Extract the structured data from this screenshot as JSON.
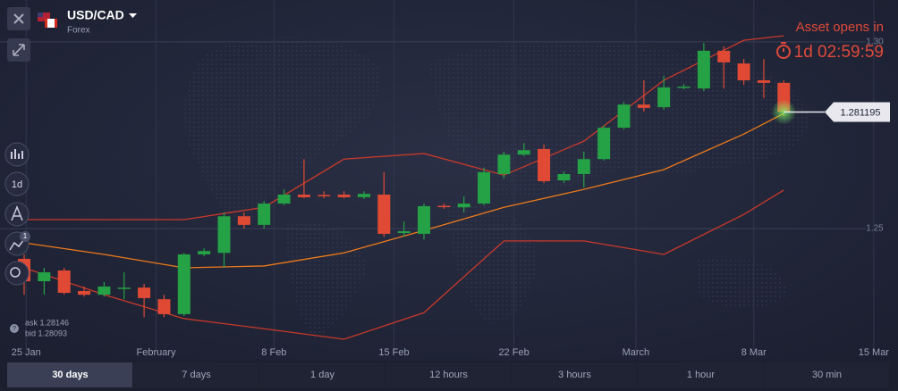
{
  "header": {
    "symbol": "USD/CAD",
    "market": "Forex"
  },
  "notice": {
    "text": "Asset opens in",
    "countdown": "1d 02:59:59"
  },
  "toolbar": {
    "interval": "1d",
    "badge": "1"
  },
  "quote": {
    "ask": "ask 1.28146",
    "bid": "bid 1.28093"
  },
  "chart_data": {
    "type": "candlestick",
    "open": [
      1.2419,
      1.2359,
      1.2388,
      1.2333,
      1.2323,
      1.234,
      1.2342,
      1.2311,
      1.2271,
      1.2431,
      1.2435,
      1.2533,
      1.251,
      1.2567,
      1.2591,
      1.259,
      1.2591,
      1.2584,
      1.2591,
      1.2488,
      1.2486,
      1.2561,
      1.2557,
      1.2567,
      1.2646,
      1.2698,
      1.2713,
      1.2629,
      1.2646,
      1.2686,
      1.277,
      1.2832,
      1.2825,
      1.2878,
      1.2875,
      1.2976,
      1.2942,
      1.2897,
      1.289
    ],
    "high": [
      1.2431,
      1.2395,
      1.2395,
      1.2345,
      1.2357,
      1.2383,
      1.2352,
      1.2323,
      1.2435,
      1.2447,
      1.2543,
      1.2543,
      1.2574,
      1.2605,
      1.2686,
      1.26,
      1.26,
      1.26,
      1.2651,
      1.2519,
      1.2567,
      1.2567,
      1.2586,
      1.2663,
      1.2706,
      1.2729,
      1.2725,
      1.2653,
      1.2706,
      1.2777,
      1.2839,
      1.2897,
      1.2909,
      1.2887,
      1.2997,
      1.2988,
      1.2954,
      1.2954,
      1.2897
    ],
    "low": [
      1.2323,
      1.2323,
      1.2323,
      1.2318,
      1.2318,
      1.2311,
      1.2263,
      1.2263,
      1.2266,
      1.2426,
      1.2395,
      1.25,
      1.25,
      1.2562,
      1.2581,
      1.2581,
      1.2581,
      1.2579,
      1.2478,
      1.2478,
      1.2471,
      1.2553,
      1.2543,
      1.2562,
      1.2634,
      1.2694,
      1.2622,
      1.2622,
      1.261,
      1.2682,
      1.2765,
      1.2813,
      1.2818,
      1.2873,
      1.2868,
      1.2875,
      1.2885,
      1.2849,
      1.2801
    ],
    "close": [
      1.2359,
      1.2383,
      1.2328,
      1.2323,
      1.2345,
      1.2342,
      1.2314,
      1.2271,
      1.2431,
      1.244,
      1.2533,
      1.251,
      1.2567,
      1.2591,
      1.2584,
      1.2587,
      1.2584,
      1.2593,
      1.2486,
      1.2493,
      1.256,
      1.2559,
      1.2567,
      1.2651,
      1.2698,
      1.271,
      1.2627,
      1.2646,
      1.2686,
      1.277,
      1.2832,
      1.2823,
      1.2878,
      1.288,
      1.2976,
      1.2945,
      1.2897,
      1.289,
      1.2812
    ],
    "up_color": "#25a146",
    "down_color": "#e04a35",
    "bands": [
      {
        "color": "#c9392a",
        "x": [
          0,
          4,
          8,
          12,
          16,
          20,
          24,
          28,
          32,
          36,
          38
        ],
        "values": [
          1.2524,
          1.2524,
          1.2524,
          1.2557,
          1.2686,
          1.2701,
          1.2643,
          1.2734,
          1.2897,
          1.3004,
          1.3016
        ]
      },
      {
        "color": "#ef7a1a",
        "x": [
          0,
          4,
          8,
          12,
          16,
          20,
          24,
          28,
          32,
          36,
          38
        ],
        "values": [
          1.2462,
          1.2431,
          1.2395,
          1.24,
          1.2435,
          1.2495,
          1.2557,
          1.2605,
          1.2658,
          1.2753,
          1.2808
        ]
      },
      {
        "color": "#c9392a",
        "x": [
          0,
          4,
          8,
          12,
          16,
          20,
          24,
          28,
          32,
          36,
          38
        ],
        "values": [
          1.2395,
          1.2323,
          1.2259,
          1.2232,
          1.2204,
          1.2275,
          1.2467,
          1.2467,
          1.2431,
          1.2538,
          1.2603
        ]
      }
    ],
    "current_price": 1.281195,
    "xlim": [
      -1.208,
      43.714
    ],
    "xticks": [
      {
        "value": 0.1,
        "label": "25 Jan"
      },
      {
        "value": 6.6,
        "label": "February"
      },
      {
        "value": 12.5,
        "label": "8 Feb"
      },
      {
        "value": 18.5,
        "label": "15 Feb"
      },
      {
        "value": 24.5,
        "label": "22 Feb"
      },
      {
        "value": 30.6,
        "label": "March"
      },
      {
        "value": 36.5,
        "label": "8 Mar"
      },
      {
        "value": 42.5,
        "label": "15 Mar"
      }
    ],
    "ylim": [
      1.218,
      1.3088
    ],
    "yticks": [
      1.25,
      {
        "value": 1.3,
        "label": "1.30"
      }
    ],
    "grid": true
  },
  "timeframes": [
    "30 days",
    "7 days",
    "1 day",
    "12 hours",
    "3 hours",
    "1 hour",
    "30 min"
  ],
  "active_timeframe": 0
}
